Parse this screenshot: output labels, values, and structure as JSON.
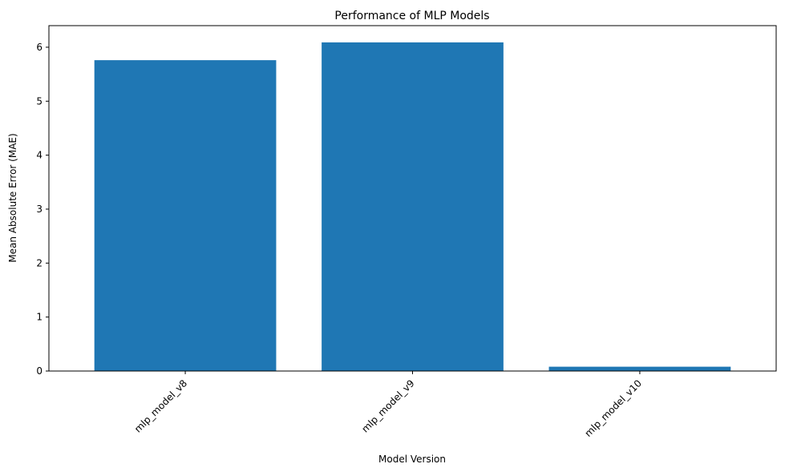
{
  "chart_data": {
    "type": "bar",
    "title": "Performance of MLP Models",
    "xlabel": "Model Version",
    "ylabel": "Mean Absolute Error (MAE)",
    "categories": [
      "mlp_model_v8",
      "mlp_model_v9",
      "mlp_model_v10"
    ],
    "values": [
      5.76,
      6.09,
      0.08
    ],
    "ylim": [
      0,
      6.4
    ],
    "yticks": [
      0,
      1,
      2,
      3,
      4,
      5,
      6
    ],
    "ytick_labels": [
      "0",
      "1",
      "2",
      "3",
      "4",
      "5",
      "6"
    ],
    "bar_color": "#1f77b4",
    "grid": false,
    "legend": "none"
  }
}
